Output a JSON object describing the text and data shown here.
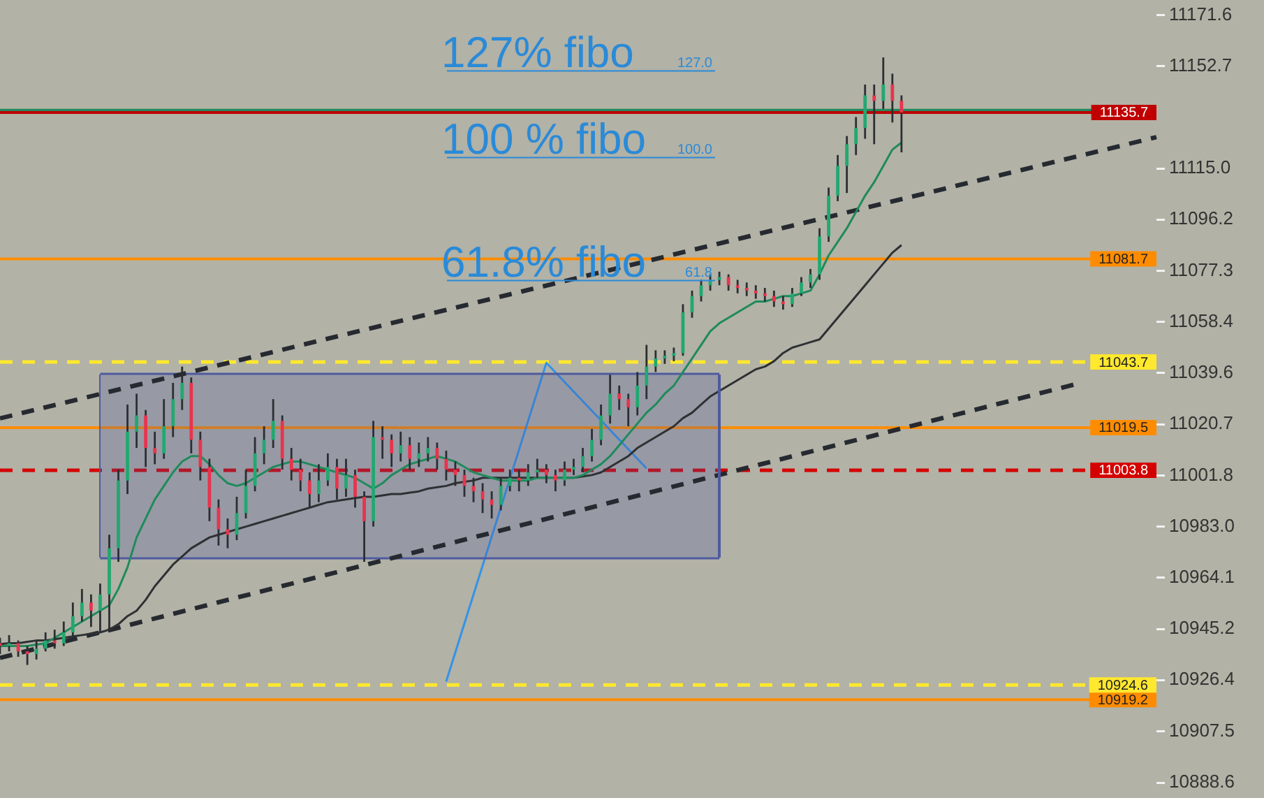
{
  "chart_data": {
    "type": "candlestick",
    "tick_labels": "y",
    "categories": [
      null,
      null,
      null,
      null,
      null,
      null,
      null,
      null,
      null,
      null,
      null,
      null,
      null,
      null,
      null,
      null,
      null,
      null,
      null,
      null,
      null,
      null,
      null,
      null,
      null,
      null,
      null,
      null,
      null,
      null,
      null,
      null,
      null,
      null,
      null,
      null,
      null,
      null,
      null,
      null,
      null,
      null,
      null,
      null,
      null,
      null,
      null,
      null,
      null,
      null,
      null,
      null,
      null,
      null,
      null,
      null,
      null,
      null,
      null,
      null,
      null,
      null,
      null,
      null,
      null,
      null,
      null,
      null,
      null,
      null,
      null,
      null,
      null,
      null,
      null,
      null,
      null,
      null,
      null,
      null,
      null,
      null,
      null,
      null,
      null,
      null,
      null,
      null,
      null,
      null,
      null,
      null,
      null,
      null,
      null,
      null,
      null,
      null,
      null,
      null,
      null,
      null,
      null,
      null,
      null,
      null,
      null,
      null,
      null,
      null,
      null,
      null,
      null,
      null,
      null,
      null,
      null,
      null,
      null,
      null,
      null,
      null,
      null,
      null,
      null,
      null,
      null,
      null
    ],
    "ohlc": [
      [
        10940,
        10942,
        10936,
        10939
      ],
      [
        10939,
        10943,
        10937,
        10940
      ],
      [
        10940,
        10941,
        10935,
        10937
      ],
      [
        10937,
        10939,
        10932,
        10936
      ],
      [
        10936,
        10941,
        10934,
        10938
      ],
      [
        10938,
        10944,
        10937,
        10941
      ],
      [
        10941,
        10945,
        10938,
        10940
      ],
      [
        10940,
        10948,
        10939,
        10944
      ],
      [
        10944,
        10955,
        10942,
        10950
      ],
      [
        10950,
        10960,
        10948,
        10955
      ],
      [
        10955,
        10958,
        10946,
        10952
      ],
      [
        10952,
        10962,
        10944,
        10958
      ],
      [
        10958,
        10980,
        10944,
        10975
      ],
      [
        10975,
        11004,
        10970,
        11000
      ],
      [
        11000,
        11028,
        10995,
        11018
      ],
      [
        11018,
        11032,
        11012,
        11024
      ],
      [
        11024,
        11026,
        11005,
        11012
      ],
      [
        11012,
        11018,
        11006,
        11010
      ],
      [
        11010,
        11030,
        11008,
        11020
      ],
      [
        11020,
        11036,
        11016,
        11030
      ],
      [
        11030,
        11042,
        11026,
        11036
      ],
      [
        11036,
        11038,
        11010,
        11015
      ],
      [
        11015,
        11018,
        11000,
        11005
      ],
      [
        11005,
        11008,
        10985,
        10990
      ],
      [
        10990,
        10993,
        10976,
        10982
      ],
      [
        10982,
        10986,
        10975,
        10980
      ],
      [
        10980,
        10994,
        10978,
        10988
      ],
      [
        10988,
        11004,
        10986,
        10998
      ],
      [
        10998,
        11016,
        10996,
        11010
      ],
      [
        11010,
        11020,
        11006,
        11015
      ],
      [
        11015,
        11030,
        11012,
        11022
      ],
      [
        11022,
        11024,
        11004,
        11008
      ],
      [
        11008,
        11012,
        11000,
        11004
      ],
      [
        11004,
        11008,
        10996,
        11000
      ],
      [
        11000,
        11003,
        10990,
        10995
      ],
      [
        10995,
        11006,
        10992,
        11000
      ],
      [
        11000,
        11010,
        10998,
        11005
      ],
      [
        11005,
        11008,
        10993,
        10997
      ],
      [
        10997,
        11008,
        10994,
        11002
      ],
      [
        11002,
        11004,
        10990,
        10994
      ],
      [
        10994,
        10996,
        10970,
        10985
      ],
      [
        10985,
        11022,
        10983,
        11016
      ],
      [
        11016,
        11020,
        11008,
        11015
      ],
      [
        11015,
        11017,
        11005,
        11010
      ],
      [
        11010,
        11018,
        11007,
        11013
      ],
      [
        11013,
        11016,
        11004,
        11008
      ],
      [
        11008,
        11014,
        11005,
        11010
      ],
      [
        11010,
        11016,
        11007,
        11012
      ],
      [
        11012,
        11014,
        11004,
        11008
      ],
      [
        11008,
        11011,
        11000,
        11004
      ],
      [
        11004,
        11007,
        10998,
        11002
      ],
      [
        11002,
        11004,
        10994,
        10998
      ],
      [
        10998,
        11001,
        10992,
        10996
      ],
      [
        10996,
        10999,
        10988,
        10993
      ],
      [
        10993,
        10996,
        10986,
        10991
      ],
      [
        10991,
        11001,
        10989,
        10998
      ],
      [
        10998,
        11004,
        10996,
        11001
      ],
      [
        11001,
        11004,
        10996,
        11000
      ],
      [
        11000,
        11006,
        10998,
        11003
      ],
      [
        11003,
        11008,
        11001,
        11004
      ],
      [
        11004,
        11006,
        10999,
        11002
      ],
      [
        11002,
        11004,
        10996,
        11000
      ],
      [
        11000,
        11007,
        10998,
        11004
      ],
      [
        11004,
        11008,
        11002,
        11005
      ],
      [
        11005,
        11012,
        11003,
        11009
      ],
      [
        11009,
        11019,
        11007,
        11015
      ],
      [
        11015,
        11028,
        11013,
        11024
      ],
      [
        11024,
        11039,
        11021,
        11032
      ],
      [
        11032,
        11035,
        11026,
        11030
      ],
      [
        11030,
        11032,
        11020,
        11027
      ],
      [
        11027,
        11040,
        11024,
        11035
      ],
      [
        11035,
        11050,
        11030,
        11042
      ],
      [
        11042,
        11048,
        11040,
        11045
      ],
      [
        11045,
        11048,
        11043,
        11046
      ],
      [
        11046,
        11049,
        11044,
        11047
      ],
      [
        11047,
        11065,
        11046,
        11062
      ],
      [
        11062,
        11070,
        11060,
        11068
      ],
      [
        11068,
        11074,
        11066,
        11072
      ],
      [
        11072,
        11076,
        11070,
        11074
      ],
      [
        11074,
        11077,
        11072,
        11075
      ],
      [
        11075,
        11076,
        11070,
        11072
      ],
      [
        11072,
        11074,
        11069,
        11071
      ],
      [
        11071,
        11073,
        11068,
        11070
      ],
      [
        11070,
        11072,
        11067,
        11069
      ],
      [
        11069,
        11071,
        11066,
        11068
      ],
      [
        11068,
        11070,
        11064,
        11066
      ],
      [
        11066,
        11068,
        11063,
        11065
      ],
      [
        11065,
        11071,
        11064,
        11069
      ],
      [
        11069,
        11075,
        11068,
        11073
      ],
      [
        11073,
        11078,
        11071,
        11076
      ],
      [
        11076,
        11093,
        11074,
        11090
      ],
      [
        11090,
        11108,
        11088,
        11105
      ],
      [
        11105,
        11120,
        11103,
        11116
      ],
      [
        11116,
        11127,
        11106,
        11124
      ],
      [
        11124,
        11134,
        11120,
        11130
      ],
      [
        11130,
        11146,
        11126,
        11142
      ],
      [
        11142,
        11146,
        11124,
        11140
      ],
      [
        11140,
        11156,
        11137,
        11146
      ],
      [
        11146,
        11150,
        11132,
        11140
      ],
      [
        11140,
        11142,
        11121,
        11135.7
      ],
      null,
      null,
      null,
      null,
      null,
      null,
      null,
      null,
      null,
      null,
      null,
      null,
      null,
      null,
      null,
      null,
      null,
      null,
      null,
      null,
      null,
      null,
      null,
      null,
      null,
      null,
      null,
      null
    ],
    "series": [
      {
        "type": "line",
        "color": "#1f8a5c",
        "values": [
          10939,
          10939,
          10939,
          10939,
          10939.5,
          10940,
          10942,
          10944,
          10946,
          10948,
          10950,
          10952,
          10954,
          10960,
          10968,
          10979,
          10986,
          10993,
          10998,
          11003,
          11007,
          11009,
          11009,
          11006,
          11002,
          10999,
          10998,
          10999,
          11001,
          11003,
          11005,
          11006,
          11007,
          11007,
          11006,
          11005,
          11004,
          11003,
          11002,
          11001,
          10999,
          10997,
          10999,
          11002,
          11004,
          11006,
          11007,
          11008,
          11009,
          11008,
          11007,
          11005,
          11003,
          11002,
          11001,
          11000,
          11000,
          11000,
          11000,
          11001,
          11001,
          11001,
          11001,
          11001,
          11002,
          11004,
          11006,
          11009,
          11013,
          11017,
          11021,
          11025,
          11028,
          11032,
          11035,
          11040,
          11045,
          11050,
          11055,
          11058,
          11060,
          11062,
          11064,
          11066,
          11066,
          11067,
          11068,
          11068,
          11069,
          11070,
          11076,
          11083,
          11088,
          11093,
          11099,
          11105,
          11110,
          11116,
          11122,
          11124.6,
          null,
          null,
          null,
          null,
          null,
          null,
          null,
          null,
          null,
          null,
          null,
          null,
          null,
          null,
          null,
          null,
          null,
          null,
          null,
          null,
          null,
          null,
          null,
          null,
          null,
          null,
          null,
          null
        ]
      },
      {
        "type": "line",
        "color": "#2e3133",
        "values": [
          10939.7,
          10940,
          10940,
          10940.5,
          10941,
          10941,
          10941.5,
          10942,
          10942.5,
          10943,
          10943.5,
          10944,
          10945,
          10947,
          10950,
          10952,
          10956,
          10961,
          10965,
          10969,
          10972,
          10975,
          10977,
          10979,
          10980,
          10981,
          10982,
          10983,
          10984,
          10985,
          10986,
          10987,
          10988,
          10989,
          10990,
          10991,
          10992,
          10992.5,
          10993,
          10993.5,
          10994,
          10994,
          10994.5,
          10995,
          10995,
          10995.5,
          10996,
          10997,
          10997.5,
          10998,
          10999,
          10999.5,
          11000,
          11001,
          11001,
          11001,
          11001,
          11001,
          11001,
          11001,
          11001,
          11001,
          11001,
          11001,
          11001.5,
          11002,
          11003,
          11005,
          11007,
          11009,
          11012,
          11014,
          11016,
          11018,
          11020,
          11023,
          11025,
          11028,
          11031,
          11033,
          11035,
          11037,
          11039,
          11041,
          11042,
          11044,
          11047,
          11049,
          11050,
          11051,
          11052,
          11056,
          11060,
          11064,
          11068,
          11072,
          11076,
          11080,
          11084,
          11086.8,
          null,
          null,
          null,
          null,
          null,
          null,
          null,
          null,
          null,
          null,
          null,
          null,
          null,
          null,
          null,
          null,
          null,
          null,
          null,
          null,
          null,
          null,
          null,
          null,
          null,
          null,
          null,
          null
        ]
      },
      {
        "type": "line",
        "color": "#262a30",
        "line_style": "dashed",
        "values": [
          11022.9,
          null,
          null,
          null,
          null,
          null,
          null,
          null,
          null,
          null,
          null,
          null,
          null,
          null,
          null,
          null,
          null,
          null,
          null,
          null,
          null,
          null,
          null,
          null,
          null,
          null,
          null,
          null,
          null,
          null,
          null,
          null,
          null,
          null,
          null,
          null,
          null,
          null,
          null,
          null,
          null,
          null,
          null,
          null,
          null,
          null,
          null,
          null,
          null,
          null,
          null,
          null,
          null,
          null,
          null,
          null,
          null,
          null,
          null,
          null,
          null,
          null,
          null,
          null,
          null,
          null,
          null,
          null,
          null,
          null,
          null,
          null,
          null,
          null,
          null,
          null,
          null,
          null,
          null,
          null,
          null,
          null,
          null,
          null,
          null,
          null,
          null,
          null,
          null,
          null,
          null,
          null,
          null,
          null,
          null,
          null,
          null,
          null,
          null,
          null,
          null,
          null,
          null,
          null,
          null,
          null,
          null,
          null,
          null,
          null,
          null,
          null,
          null,
          null,
          null,
          null,
          null,
          null,
          null,
          null,
          null,
          null,
          null,
          null,
          null,
          null,
          null,
          11126.6
        ]
      },
      {
        "type": "line",
        "color": "#262a30",
        "line_style": "dashed",
        "values": [
          10934.6,
          null,
          null,
          null,
          null,
          null,
          null,
          null,
          null,
          null,
          null,
          null,
          null,
          null,
          null,
          null,
          null,
          null,
          null,
          null,
          null,
          null,
          null,
          null,
          null,
          null,
          null,
          null,
          null,
          null,
          null,
          null,
          null,
          null,
          null,
          null,
          null,
          null,
          null,
          null,
          null,
          null,
          null,
          null,
          null,
          null,
          null,
          null,
          null,
          null,
          null,
          null,
          null,
          null,
          null,
          null,
          null,
          null,
          null,
          null,
          null,
          null,
          null,
          null,
          null,
          null,
          null,
          null,
          null,
          null,
          null,
          null,
          null,
          null,
          null,
          null,
          null,
          null,
          null,
          null,
          null,
          null,
          null,
          null,
          null,
          null,
          null,
          null,
          null,
          null,
          null,
          null,
          null,
          null,
          null,
          null,
          null,
          null,
          null,
          null,
          null,
          null,
          null,
          null,
          null,
          null,
          null,
          null,
          null,
          null,
          null,
          null,
          null,
          null,
          null,
          null,
          null,
          null,
          11035.4,
          null,
          null,
          null,
          null,
          null,
          null,
          null,
          null,
          null
        ]
      },
      {
        "type": "area",
        "color": "#4f5aa0",
        "values": [
          null,
          null,
          null,
          null,
          null,
          null,
          null,
          null,
          null,
          null,
          null,
          11039.3,
          null,
          null,
          null,
          null,
          null,
          null,
          null,
          null,
          null,
          null,
          null,
          null,
          null,
          null,
          null,
          null,
          null,
          null,
          null,
          null,
          null,
          null,
          null,
          null,
          null,
          null,
          null,
          null,
          null,
          null,
          null,
          null,
          null,
          null,
          null,
          null,
          null,
          null,
          null,
          null,
          null,
          null,
          null,
          null,
          null,
          null,
          null,
          null,
          null,
          null,
          null,
          null,
          null,
          null,
          null,
          null,
          null,
          null,
          null,
          null,
          null,
          null,
          null,
          null,
          null,
          null,
          null,
          11039.3,
          null,
          null,
          null,
          null,
          null,
          null,
          null,
          null,
          null,
          null,
          null,
          null,
          null,
          null,
          null,
          null,
          null,
          null,
          null,
          null,
          null,
          null,
          null,
          null,
          null,
          null,
          null,
          null,
          null,
          null,
          null,
          null,
          null,
          null,
          null,
          null,
          null,
          null,
          null,
          null,
          null,
          null,
          null,
          null,
          null,
          null,
          null,
          null
        ]
      },
      {
        "type": "line",
        "color": "#4f5aa0",
        "values": [
          null,
          null,
          null,
          null,
          null,
          null,
          null,
          null,
          null,
          null,
          null,
          10971.3,
          null,
          null,
          null,
          null,
          null,
          null,
          null,
          null,
          null,
          null,
          null,
          null,
          null,
          null,
          null,
          null,
          null,
          null,
          null,
          null,
          null,
          null,
          null,
          null,
          null,
          null,
          null,
          null,
          null,
          null,
          null,
          null,
          null,
          null,
          null,
          null,
          null,
          null,
          null,
          null,
          null,
          null,
          null,
          null,
          null,
          null,
          null,
          null,
          null,
          null,
          null,
          null,
          null,
          null,
          null,
          null,
          null,
          null,
          null,
          null,
          null,
          null,
          null,
          null,
          null,
          null,
          null,
          10971.3,
          null,
          null,
          null,
          null,
          null,
          null,
          null,
          null,
          null,
          null,
          null,
          null,
          null,
          null,
          null,
          null,
          null,
          null,
          null,
          null,
          null,
          null,
          null,
          null,
          null,
          null,
          null,
          null,
          null,
          null,
          null,
          null,
          null,
          null,
          null,
          null,
          null,
          null,
          null,
          null,
          null,
          null,
          null,
          null,
          null,
          null,
          null,
          null
        ]
      },
      {
        "type": "line",
        "color": "#3393e8",
        "values": [
          null,
          null,
          null,
          null,
          null,
          null,
          null,
          null,
          null,
          null,
          null,
          null,
          null,
          null,
          null,
          null,
          null,
          null,
          null,
          null,
          null,
          null,
          null,
          null,
          null,
          null,
          null,
          null,
          null,
          null,
          null,
          null,
          null,
          null,
          null,
          null,
          null,
          null,
          null,
          null,
          null,
          null,
          null,
          null,
          null,
          null,
          null,
          null,
          null,
          10925.9,
          null,
          null,
          null,
          null,
          null,
          null,
          null,
          null,
          null,
          null,
          11043.4,
          null,
          null,
          null,
          null,
          null,
          null,
          null,
          null,
          null,
          null,
          11004.5,
          null,
          null,
          null,
          null,
          null,
          null,
          null,
          null,
          null,
          null,
          null,
          null,
          null,
          null,
          null,
          null,
          null,
          null,
          null,
          null,
          null,
          null,
          null,
          null,
          null,
          null,
          null,
          null,
          null,
          null,
          null,
          null,
          null,
          null,
          null,
          null,
          null,
          null,
          null,
          null,
          null,
          null,
          null,
          null,
          null,
          null,
          null,
          null,
          null,
          null,
          null,
          null,
          null,
          null,
          null,
          null
        ]
      }
    ],
    "ylim": [
      10888.6,
      11171.6
    ],
    "yticks": [
      10888.6,
      10907.5,
      10926.4,
      10945.2,
      10964.1,
      {
        "value": 10983,
        "label": "10983.0"
      },
      11001.8,
      11020.7,
      11039.6,
      11058.4,
      11077.3,
      11096.2,
      {
        "value": 11115,
        "label": "11115.0"
      },
      11152.7,
      11171.6
    ],
    "ref_lines": [
      {
        "axis": "y",
        "value": 11136.5,
        "color": "#1f8a5c"
      },
      {
        "axis": "y",
        "value": 11135.7,
        "label": "11135.7",
        "color": "#c00000"
      },
      {
        "axis": "y",
        "value": 11081.7,
        "label": "11081.7",
        "color": "#ff8c00"
      },
      {
        "axis": "y",
        "value": 11043.7,
        "label": "11043.7",
        "color": "#ffe82e",
        "line_style": "dashed"
      },
      {
        "axis": "y",
        "value": 11019.5,
        "label": "11019.5",
        "color": "#ff8c00"
      },
      {
        "axis": "y",
        "value": 11003.8,
        "label": "11003.8",
        "color": "#d40000",
        "line_style": "dashed"
      },
      {
        "axis": "y",
        "value": 10924.6,
        "label": "10924.6",
        "color": "#ffe82e",
        "line_style": "dashed"
      },
      {
        "axis": "y",
        "value": 10919.2,
        "label": "10919.2",
        "color": "#ff8c00"
      }
    ],
    "annotations": [
      "127% fibo",
      "127.0",
      "100 % fibo",
      "100.0",
      "61.8% fibo",
      "61.8"
    ]
  }
}
